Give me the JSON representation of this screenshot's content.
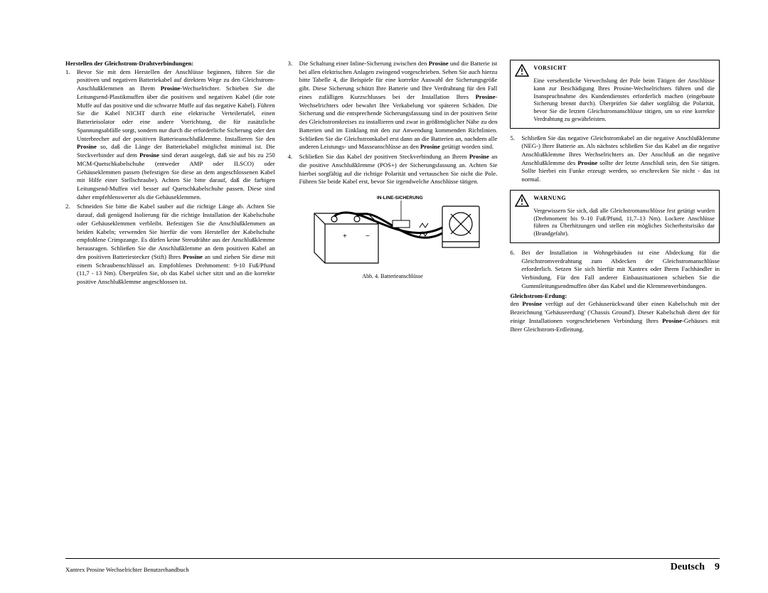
{
  "col1": {
    "heading": "Herstellen der Gleichstrom-Drahtverbindungen:",
    "items": [
      {
        "num": "1.",
        "text": "Bevor Sie mit dem Herstellen der Anschlüsse beginnen, führen Sie die positiven und negativen Batteriekabel auf direktem Wege zu den Gleichstrom-Anschlußklemmen an Ihrem <b>Prosine</b>-Wechselrichter. Schieben Sie die Leitungsend-Plastikmuffen über die positiven und negativen Kabel (die rote Muffe auf das positive und die schwarze Muffe auf das negative Kabel). Führen Sie die Kabel NICHT durch eine elektrische Verteilertafel, einen Batterieisolator oder eine andere Vorrichtung, die für zusätzliche Spannungsabfälle sorgt, sondern nur durch die erforderliche Sicherung oder den Unterbrecher auf der positiven Batterieanschlußklemme. Installieren Sie den <b>Prosine</b> so, daß die Länge der Batteriekabel möglichst minimal ist. Die Steckverbinder auf dem <b>Prosine</b> sind derart ausgelegt, daß sie auf bis zu 250 MCM-Quetschkabelschuhe (entweder AMP oder ILSCO) oder Gehäuseklemmen passen (befestigen Sie diese an dem angeschlossenen Kabel mit Hilfe einer Stellschraube). Achten Sie bitte darauf, daß die farbigen Leitungsend-Muffen viel besser auf Quetschkabelschuhe passen. Diese sind daher empfehlenswerter als die Gehäuseklemmen."
      },
      {
        "num": "2.",
        "text": "Schneiden Sie bitte die Kabel sauber auf die richtige Länge ab. Achten Sie darauf, daß genügend Isolierung für die richtige Installation der Kabelschuhe oder Gehäuseklemmen verbleibt. Befestigen Sie die Anschlußklemmen an beiden Kabeln; verwenden Sie hierfür die vom Hersteller der Kabelschuhe empfohlene Crimpzange. Es dürfen keine Streudrähte aus der Anschlußklemme herausragen. Schließen Sie die Anschlußklemme an dem positiven Kabel an den positiven Batteriestecker (Stift) Ihres <b>Prosine</b> an und ziehen Sie diese mit einem Schraubenschlüssel an. Empfohlenes Drehmoment: 9-10 Fuß/Pfund (11,7 - 13 Nm). Überprüfen Sie, ob das Kabel sicher sitzt und an die korrekte positive Anschlußklemme angeschlossen ist."
      }
    ]
  },
  "col2": {
    "items": [
      {
        "num": "3.",
        "text": "Die Schaltung einer Inline-Sicherung zwischen den <b>Prosine</b> und die Batterie ist bei allen elektrischen Anlagen zwingend vorgeschrieben. Sehen Sie auch hierzu bitte Tabelle 4, die Beispiele für eine korrekte Auswahl der Sicherungsgröße gibt. Diese Sicherung schützt Ihre Batterie und Ihre Verdrahtung für den Fall eines zufälligen Kurzschlusses bei der Installation Ihres <b>Prosine</b>-Wechselrichters oder bewahrt Ihre Verkabelung vor späteren Schäden. Die Sicherung und die entsprechende Sicherungsfassung sind in der positiven Seite des Gleichstromkreises zu installieren und zwar in größtmöglicher Nähe zu den Batterien und im Einklang mit den zur Anwendung kommenden Richtlinien. Schließen Sie die Gleichstromkabel erst dann an die Batterien an, nachdem alle anderen Leistungs- und Masseanschlüsse an den <b>Prosine</b> getätigt worden sind."
      },
      {
        "num": "4.",
        "text": "Schließen Sie das Kabel der positiven Steckverbindung an Ihrem <b>Prosine</b> an die positive Anschlußklemme (POS+) der Sicherungsfassung an. Achten Sie hierbei sorgfältig auf die richtige Polarität und vertauschen Sie nicht die Pole. Führen Sie beide Kabel erst, bevor Sie irgendwelche Anschlüsse tätigen."
      }
    ],
    "figure_label": "IN-LINE-SICHERUNG",
    "figure_caption": "Abb. 4. Batterieanschlüsse"
  },
  "col3": {
    "vorsicht": {
      "label": "VORSICHT",
      "text": "Eine versehentliche Verwechslung der Pole beim Tätigen der Anschlüsse kann zur Beschädigung Ihres Prosine-Wechselrichters führen und die Inanspruchnahme des Kundendienstes erforderlich machen (eingebaute Sicherung brennt durch). Überprüfen Sie daher sorgfältig die Polarität, bevor Sie die letzten Gleichstromanschlüsse tätigen, um so eine korrekte Verdrahtung zu gewährleisten."
    },
    "item5": {
      "num": "5.",
      "text": "Schließen Sie das negative Gleichstromkabel an die negative Anschlußklemme (NEG-) Ihrer Batterie an. Als nächstes schließen Sie das Kabel an die negative Anschlußklemme Ihres Wechselrichters an. Der Anschluß an die negative Anschlußklemme des <b>Prosine</b> sollte der letzte Anschluß sein, den Sie tätigen. Sollte hierbei ein Funke erzeugt werden, so erschrecken Sie nicht - das ist normal."
    },
    "warnung": {
      "label": "WARNUNG",
      "text": "Vergewissern Sie sich, daß alle Gleichstromanschlüsse fest getätigt wurden (Drehmoment bis 9–10 Fuß/Pfund, 11,7–13 Nm). Lockere Anschlüsse führen zu Überhitzungen und stellen ein mögliches Sicherheitsrisiko dar (Brandgefahr)."
    },
    "item6": {
      "num": "6.",
      "text": "Bei der Installation in Wohngebäuden ist eine Abdeckung für die Gleichstromverdrahtung zum Abdecken der Gleichstromanschlüsse erforderlich. Setzen Sie sich hierfür mit Xantrex oder Ihrem Fachhändler in Verbindung. Für den Fall anderer Einbausituationen schieben Sie die Gummileitungsendmuffen über das Kabel und die Klemmenverbindungen."
    },
    "heading2": "Gleichstrom-Erdung:",
    "para": "den <b>Prosine</b> verfügt auf der Gehäuserückwand über einen Kabelschuh mit der Bezeichnung 'Gehäuseerdung' ('Chassis Ground'). Dieser Kabelschuh dient der für einige Installationen vorgeschriebenen Verbindung Ihres <b>Prosine</b>-Gehäuses mit Ihrer Gleichstrom-Erdleitung."
  },
  "footer": {
    "left": "Xantrex Prosine Wechselrichter Benutzerhandbuch",
    "lang": "Deutsch",
    "page": "9"
  },
  "colors": {
    "text": "#000000",
    "background": "#ffffff",
    "border": "#000000"
  }
}
